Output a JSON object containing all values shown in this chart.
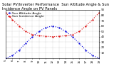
{
  "title": "Solar PV/Inverter Performance  Sun Altitude Angle & Sun Incidence Angle on PV Panels",
  "legend": [
    "Sun Altitude Angle",
    "Sun Incidence Angle"
  ],
  "x_values": [
    5,
    6,
    7,
    8,
    9,
    10,
    11,
    12,
    13,
    14,
    15,
    16,
    17,
    18,
    19
  ],
  "altitude_y": [
    0,
    5,
    15,
    28,
    40,
    50,
    57,
    60,
    57,
    50,
    40,
    28,
    15,
    5,
    0
  ],
  "incidence_y": [
    85,
    72,
    60,
    50,
    44,
    42,
    41,
    40,
    41,
    42,
    44,
    50,
    60,
    72,
    85
  ],
  "blue_color": "#0000dd",
  "red_color": "#dd0000",
  "bg_color": "#ffffff",
  "grid_color": "#888888",
  "ylim": [
    0,
    90
  ],
  "xlim": [
    5,
    19
  ],
  "yticks": [
    10,
    20,
    30,
    40,
    50,
    60,
    70,
    80,
    90
  ],
  "xticks": [
    5,
    6,
    7,
    8,
    9,
    10,
    11,
    12,
    13,
    14,
    15,
    16,
    17,
    18,
    19
  ],
  "title_fontsize": 3.8,
  "legend_fontsize": 3.2,
  "tick_fontsize": 2.8
}
